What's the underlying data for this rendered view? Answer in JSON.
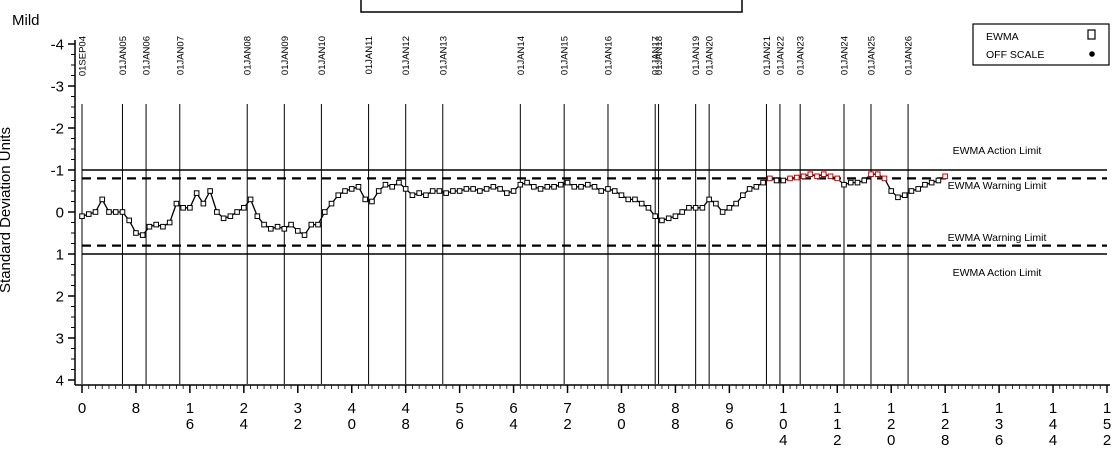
{
  "chart_data": {
    "type": "line",
    "title": "",
    "corner_label": "Mild",
    "ylabel": "Standard Deviation Units",
    "xlabel": "",
    "xlim": [
      -2,
      152
    ],
    "ylim": [
      4,
      -4
    ],
    "y_inverted": true,
    "y_ticks": [
      -4,
      -3,
      -2,
      -1,
      0,
      1,
      2,
      3,
      4
    ],
    "y_tick_labels": [
      "-4",
      "-3",
      "-2",
      "-1",
      "0",
      "1",
      "2",
      "3",
      "4"
    ],
    "x_ticks": [
      0,
      8,
      16,
      24,
      32,
      40,
      48,
      56,
      64,
      72,
      80,
      88,
      96,
      104,
      112,
      120,
      128,
      136,
      144,
      152
    ],
    "x_tick_labels": [
      "0",
      "8",
      "16",
      "24",
      "32",
      "40",
      "48",
      "56",
      "64",
      "72",
      "80",
      "88",
      "96",
      "104",
      "112",
      "120",
      "128",
      "136",
      "144",
      "152"
    ],
    "limits": [
      {
        "label": "EWMA Action Limit",
        "value": -1.0,
        "style": "solid"
      },
      {
        "label": "EWMA Warning Limit",
        "value": -0.8,
        "style": "dashed"
      },
      {
        "label": "EWMA Warning Limit",
        "value": 0.8,
        "style": "dashed"
      },
      {
        "label": "EWMA Action Limit",
        "value": 1.0,
        "style": "solid"
      }
    ],
    "events": [
      {
        "label": "01SEP04",
        "x": 0
      },
      {
        "label": "01JAN05",
        "x": 6
      },
      {
        "label": "01JAN06",
        "x": 9.5
      },
      {
        "label": "01JAN07",
        "x": 14.5
      },
      {
        "label": "01JAN08",
        "x": 24.5
      },
      {
        "label": "01JAN09",
        "x": 30
      },
      {
        "label": "01JAN10",
        "x": 35.5
      },
      {
        "label": "01JAN11",
        "x": 42.5
      },
      {
        "label": "01JAN12",
        "x": 48
      },
      {
        "label": "01JAN13",
        "x": 53.5
      },
      {
        "label": "01JAN14",
        "x": 65
      },
      {
        "label": "01JAN15",
        "x": 71.5
      },
      {
        "label": "01JAN16",
        "x": 78
      },
      {
        "label": "01JAN17",
        "x": 85
      },
      {
        "label": "01JAN18",
        "x": 85.5
      },
      {
        "label": "01JAN19",
        "x": 91
      },
      {
        "label": "01JAN20",
        "x": 93
      },
      {
        "label": "01JAN21",
        "x": 101.5
      },
      {
        "label": "01JAN22",
        "x": 103.5
      },
      {
        "label": "01JAN23",
        "x": 106.5
      },
      {
        "label": "01JAN24",
        "x": 113
      },
      {
        "label": "01JAN25",
        "x": 117
      },
      {
        "label": "01JAN26",
        "x": 122.5
      }
    ],
    "legend": {
      "position": "top-right",
      "entries": [
        {
          "label": "EWMA",
          "marker": "open-square"
        },
        {
          "label": "OFF SCALE",
          "marker": "filled-dot"
        }
      ]
    },
    "series": [
      {
        "name": "EWMA",
        "marker": "open-square",
        "points": [
          [
            0,
            0.1
          ],
          [
            1,
            0.05
          ],
          [
            2,
            0.0
          ],
          [
            3,
            -0.3
          ],
          [
            4,
            0.0
          ],
          [
            5,
            0.0
          ],
          [
            6,
            0.0
          ],
          [
            7,
            0.2
          ],
          [
            8,
            0.5
          ],
          [
            9,
            0.55
          ],
          [
            10,
            0.35
          ],
          [
            11,
            0.3
          ],
          [
            12,
            0.35
          ],
          [
            13,
            0.25
          ],
          [
            14,
            -0.2
          ],
          [
            15,
            -0.1
          ],
          [
            16,
            -0.1
          ],
          [
            17,
            -0.45
          ],
          [
            18,
            -0.2
          ],
          [
            19,
            -0.5
          ],
          [
            20,
            0.0
          ],
          [
            21,
            0.15
          ],
          [
            22,
            0.1
          ],
          [
            23,
            0.0
          ],
          [
            24,
            -0.1
          ],
          [
            25,
            -0.3
          ],
          [
            26,
            0.1
          ],
          [
            27,
            0.3
          ],
          [
            28,
            0.4
          ],
          [
            29,
            0.35
          ],
          [
            30,
            0.4
          ],
          [
            31,
            0.3
          ],
          [
            32,
            0.45
          ],
          [
            33,
            0.55
          ],
          [
            34,
            0.3
          ],
          [
            35,
            0.3
          ],
          [
            36,
            0.0
          ],
          [
            37,
            -0.2
          ],
          [
            38,
            -0.4
          ],
          [
            39,
            -0.5
          ],
          [
            40,
            -0.55
          ],
          [
            41,
            -0.6
          ],
          [
            42,
            -0.3
          ],
          [
            43,
            -0.25
          ],
          [
            44,
            -0.5
          ],
          [
            45,
            -0.65
          ],
          [
            46,
            -0.6
          ],
          [
            47,
            -0.7
          ],
          [
            48,
            -0.55
          ],
          [
            49,
            -0.4
          ],
          [
            50,
            -0.45
          ],
          [
            51,
            -0.4
          ],
          [
            52,
            -0.5
          ],
          [
            53,
            -0.5
          ],
          [
            54,
            -0.45
          ],
          [
            55,
            -0.5
          ],
          [
            56,
            -0.5
          ],
          [
            57,
            -0.55
          ],
          [
            58,
            -0.55
          ],
          [
            59,
            -0.5
          ],
          [
            60,
            -0.55
          ],
          [
            61,
            -0.6
          ],
          [
            62,
            -0.55
          ],
          [
            63,
            -0.45
          ],
          [
            64,
            -0.5
          ],
          [
            65,
            -0.65
          ],
          [
            66,
            -0.7
          ],
          [
            67,
            -0.6
          ],
          [
            68,
            -0.55
          ],
          [
            69,
            -0.6
          ],
          [
            70,
            -0.6
          ],
          [
            71,
            -0.65
          ],
          [
            72,
            -0.7
          ],
          [
            73,
            -0.6
          ],
          [
            74,
            -0.6
          ],
          [
            75,
            -0.65
          ],
          [
            76,
            -0.6
          ],
          [
            77,
            -0.5
          ],
          [
            78,
            -0.55
          ],
          [
            79,
            -0.5
          ],
          [
            80,
            -0.4
          ],
          [
            81,
            -0.3
          ],
          [
            82,
            -0.3
          ],
          [
            83,
            -0.2
          ],
          [
            84,
            -0.1
          ],
          [
            85,
            0.1
          ],
          [
            86,
            0.2
          ],
          [
            87,
            0.15
          ],
          [
            88,
            0.1
          ],
          [
            89,
            0.0
          ],
          [
            90,
            -0.1
          ],
          [
            91,
            -0.1
          ],
          [
            92,
            -0.1
          ],
          [
            93,
            -0.3
          ],
          [
            94,
            -0.2
          ],
          [
            95,
            0.0
          ],
          [
            96,
            -0.1
          ],
          [
            97,
            -0.2
          ],
          [
            98,
            -0.4
          ],
          [
            99,
            -0.55
          ],
          [
            100,
            -0.6
          ],
          [
            101,
            -0.7
          ],
          [
            102,
            -0.8
          ],
          [
            103,
            -0.75
          ],
          [
            104,
            -0.75
          ],
          [
            105,
            -0.8
          ],
          [
            106,
            -0.82
          ],
          [
            107,
            -0.85
          ],
          [
            108,
            -0.9
          ],
          [
            109,
            -0.85
          ],
          [
            110,
            -0.9
          ],
          [
            111,
            -0.85
          ],
          [
            112,
            -0.8
          ],
          [
            113,
            -0.65
          ],
          [
            114,
            -0.7
          ],
          [
            115,
            -0.7
          ],
          [
            116,
            -0.75
          ],
          [
            117,
            -0.9
          ],
          [
            118,
            -0.9
          ],
          [
            119,
            -0.8
          ],
          [
            120,
            -0.5
          ],
          [
            121,
            -0.35
          ],
          [
            122,
            -0.4
          ],
          [
            123,
            -0.5
          ],
          [
            124,
            -0.55
          ],
          [
            125,
            -0.65
          ],
          [
            126,
            -0.7
          ],
          [
            127,
            -0.75
          ],
          [
            128,
            -0.85
          ]
        ]
      }
    ],
    "colors": {
      "line": "#000000",
      "highlight": "#cc0000",
      "background": "#ffffff"
    }
  }
}
